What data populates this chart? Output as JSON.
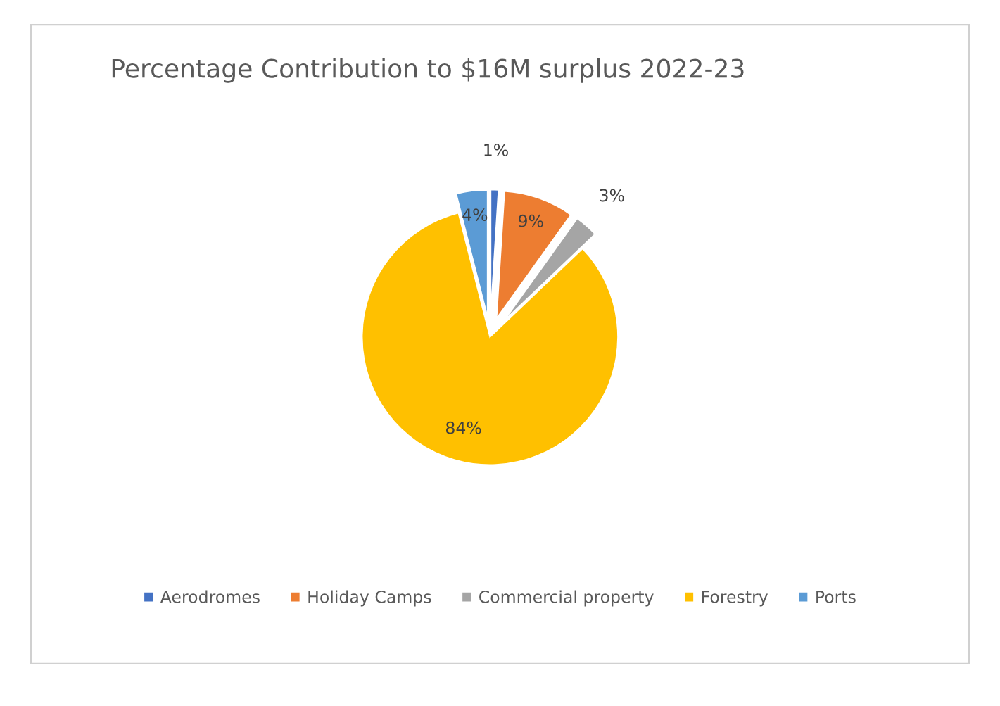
{
  "chart_data": {
    "type": "pie",
    "title": "Percentage Contribution to $16M surplus 2022-23",
    "categories": [
      "Aerodromes",
      "Holiday Camps",
      "Commercial property",
      "Forestry",
      "Ports"
    ],
    "values": [
      1,
      9,
      3,
      84,
      4
    ],
    "colors": [
      "#4472c4",
      "#ed7d31",
      "#a5a5a5",
      "#ffc000",
      "#5b9bd5"
    ],
    "value_labels": [
      "1%",
      "9%",
      "3%",
      "84%",
      "4%"
    ],
    "legend": "bottom"
  }
}
